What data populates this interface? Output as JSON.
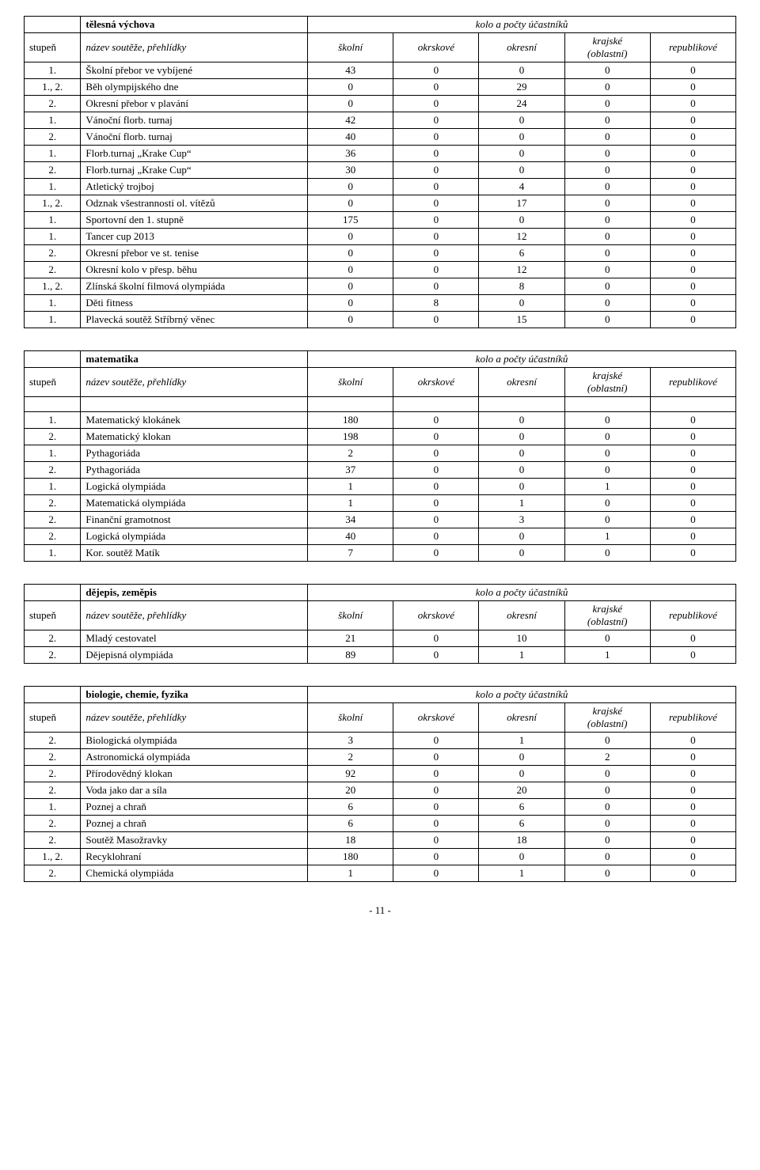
{
  "page_number": "- 11 -",
  "common_headers": {
    "stupen": "stupeň",
    "nazev": "název soutěže, přehlídky",
    "skolni": "školní",
    "okrskove": "okrskové",
    "okresni": "okresní",
    "krajske_line1": "krajské",
    "krajske_line2": "(oblastní)",
    "republikove": "republikové",
    "kolo_label": "kolo a počty účastníků"
  },
  "tables": [
    {
      "topic": "tělesná výchova",
      "rows": [
        {
          "s": "1.",
          "n": "Školní přebor ve vybíjené",
          "c": [
            "43",
            "0",
            "0",
            "0",
            "0"
          ]
        },
        {
          "s": "1., 2.",
          "n": "Běh olympijského dne",
          "c": [
            "0",
            "0",
            "29",
            "0",
            "0"
          ]
        },
        {
          "s": "2.",
          "n": "Okresní přebor v plavání",
          "c": [
            "0",
            "0",
            "24",
            "0",
            "0"
          ]
        },
        {
          "s": "1.",
          "n": "Vánoční florb. turnaj",
          "c": [
            "42",
            "0",
            "0",
            "0",
            "0"
          ]
        },
        {
          "s": "2.",
          "n": "Vánoční florb. turnaj",
          "c": [
            "40",
            "0",
            "0",
            "0",
            "0"
          ]
        },
        {
          "s": "1.",
          "n": "Florb.turnaj „Krake Cup“",
          "c": [
            "36",
            "0",
            "0",
            "0",
            "0"
          ]
        },
        {
          "s": "2.",
          "n": "Florb.turnaj „Krake Cup“",
          "c": [
            "30",
            "0",
            "0",
            "0",
            "0"
          ]
        },
        {
          "s": "1.",
          "n": "Atletický trojboj",
          "c": [
            "0",
            "0",
            "4",
            "0",
            "0"
          ]
        },
        {
          "s": "1., 2.",
          "n": "Odznak všestrannosti ol. vítězů",
          "c": [
            "0",
            "0",
            "17",
            "0",
            "0"
          ]
        },
        {
          "s": "1.",
          "n": "Sportovní den 1. stupně",
          "c": [
            "175",
            "0",
            "0",
            "0",
            "0"
          ]
        },
        {
          "s": "1.",
          "n": "Tancer cup 2013",
          "c": [
            "0",
            "0",
            "12",
            "0",
            "0"
          ]
        },
        {
          "s": "2.",
          "n": "Okresní přebor ve st. tenise",
          "c": [
            "0",
            "0",
            "6",
            "0",
            "0"
          ]
        },
        {
          "s": "2.",
          "n": "Okresní kolo v přesp. běhu",
          "c": [
            "0",
            "0",
            "12",
            "0",
            "0"
          ]
        },
        {
          "s": "1., 2.",
          "n": "Zlínská školní filmová olympiáda",
          "c": [
            "0",
            "0",
            "8",
            "0",
            "0"
          ]
        },
        {
          "s": "1.",
          "n": "Děti fitness",
          "c": [
            "0",
            "8",
            "0",
            "0",
            "0"
          ]
        },
        {
          "s": "1.",
          "n": "Plavecká soutěž Stříbrný věnec",
          "c": [
            "0",
            "0",
            "15",
            "0",
            "0"
          ]
        }
      ]
    },
    {
      "topic": "matematika",
      "spacer": true,
      "rows": [
        {
          "s": "1.",
          "n": "Matematický klokánek",
          "c": [
            "180",
            "0",
            "0",
            "0",
            "0"
          ]
        },
        {
          "s": "2.",
          "n": "Matematický klokan",
          "c": [
            "198",
            "0",
            "0",
            "0",
            "0"
          ]
        },
        {
          "s": "1.",
          "n": "Pythagoriáda",
          "c": [
            "2",
            "0",
            "0",
            "0",
            "0"
          ]
        },
        {
          "s": "2.",
          "n": "Pythagoriáda",
          "c": [
            "37",
            "0",
            "0",
            "0",
            "0"
          ]
        },
        {
          "s": "1.",
          "n": "Logická olympiáda",
          "c": [
            "1",
            "0",
            "0",
            "1",
            "0"
          ]
        },
        {
          "s": "2.",
          "n": "Matematická olympiáda",
          "c": [
            "1",
            "0",
            "1",
            "0",
            "0"
          ]
        },
        {
          "s": "2.",
          "n": "Finanční gramotnost",
          "c": [
            "34",
            "0",
            "3",
            "0",
            "0"
          ]
        },
        {
          "s": "2.",
          "n": "Logická olympiáda",
          "c": [
            "40",
            "0",
            "0",
            "1",
            "0"
          ]
        },
        {
          "s": "1.",
          "n": "Kor. soutěž Matík",
          "c": [
            "7",
            "0",
            "0",
            "0",
            "0"
          ]
        }
      ]
    },
    {
      "topic": "dějepis, zeměpis",
      "rows": [
        {
          "s": "2.",
          "n": "Mladý cestovatel",
          "c": [
            "21",
            "0",
            "10",
            "0",
            "0"
          ]
        },
        {
          "s": "2.",
          "n": "Dějepisná olympiáda",
          "c": [
            "89",
            "0",
            "1",
            "1",
            "0"
          ]
        }
      ]
    },
    {
      "topic": "biologie, chemie, fyzika",
      "rows": [
        {
          "s": "2.",
          "n": "Biologická olympiáda",
          "c": [
            "3",
            "0",
            "1",
            "0",
            "0"
          ]
        },
        {
          "s": "2.",
          "n": "Astronomická olympiáda",
          "c": [
            "2",
            "0",
            "0",
            "2",
            "0"
          ]
        },
        {
          "s": "2.",
          "n": "Přírodovědný klokan",
          "c": [
            "92",
            "0",
            "0",
            "0",
            "0"
          ]
        },
        {
          "s": "2.",
          "n": "Voda jako dar a síla",
          "c": [
            "20",
            "0",
            "20",
            "0",
            "0"
          ]
        },
        {
          "s": "1.",
          "n": "Poznej a chraň",
          "c": [
            "6",
            "0",
            "6",
            "0",
            "0"
          ]
        },
        {
          "s": "2.",
          "n": "Poznej a chraň",
          "c": [
            "6",
            "0",
            "6",
            "0",
            "0"
          ]
        },
        {
          "s": "2.",
          "n": "Soutěž Masožravky",
          "c": [
            "18",
            "0",
            "18",
            "0",
            "0"
          ]
        },
        {
          "s": "1., 2.",
          "n": "Recyklohraní",
          "c": [
            "180",
            "0",
            "0",
            "0",
            "0"
          ]
        },
        {
          "s": "2.",
          "n": "Chemická olympiáda",
          "c": [
            "1",
            "0",
            "1",
            "0",
            "0"
          ]
        }
      ]
    }
  ]
}
